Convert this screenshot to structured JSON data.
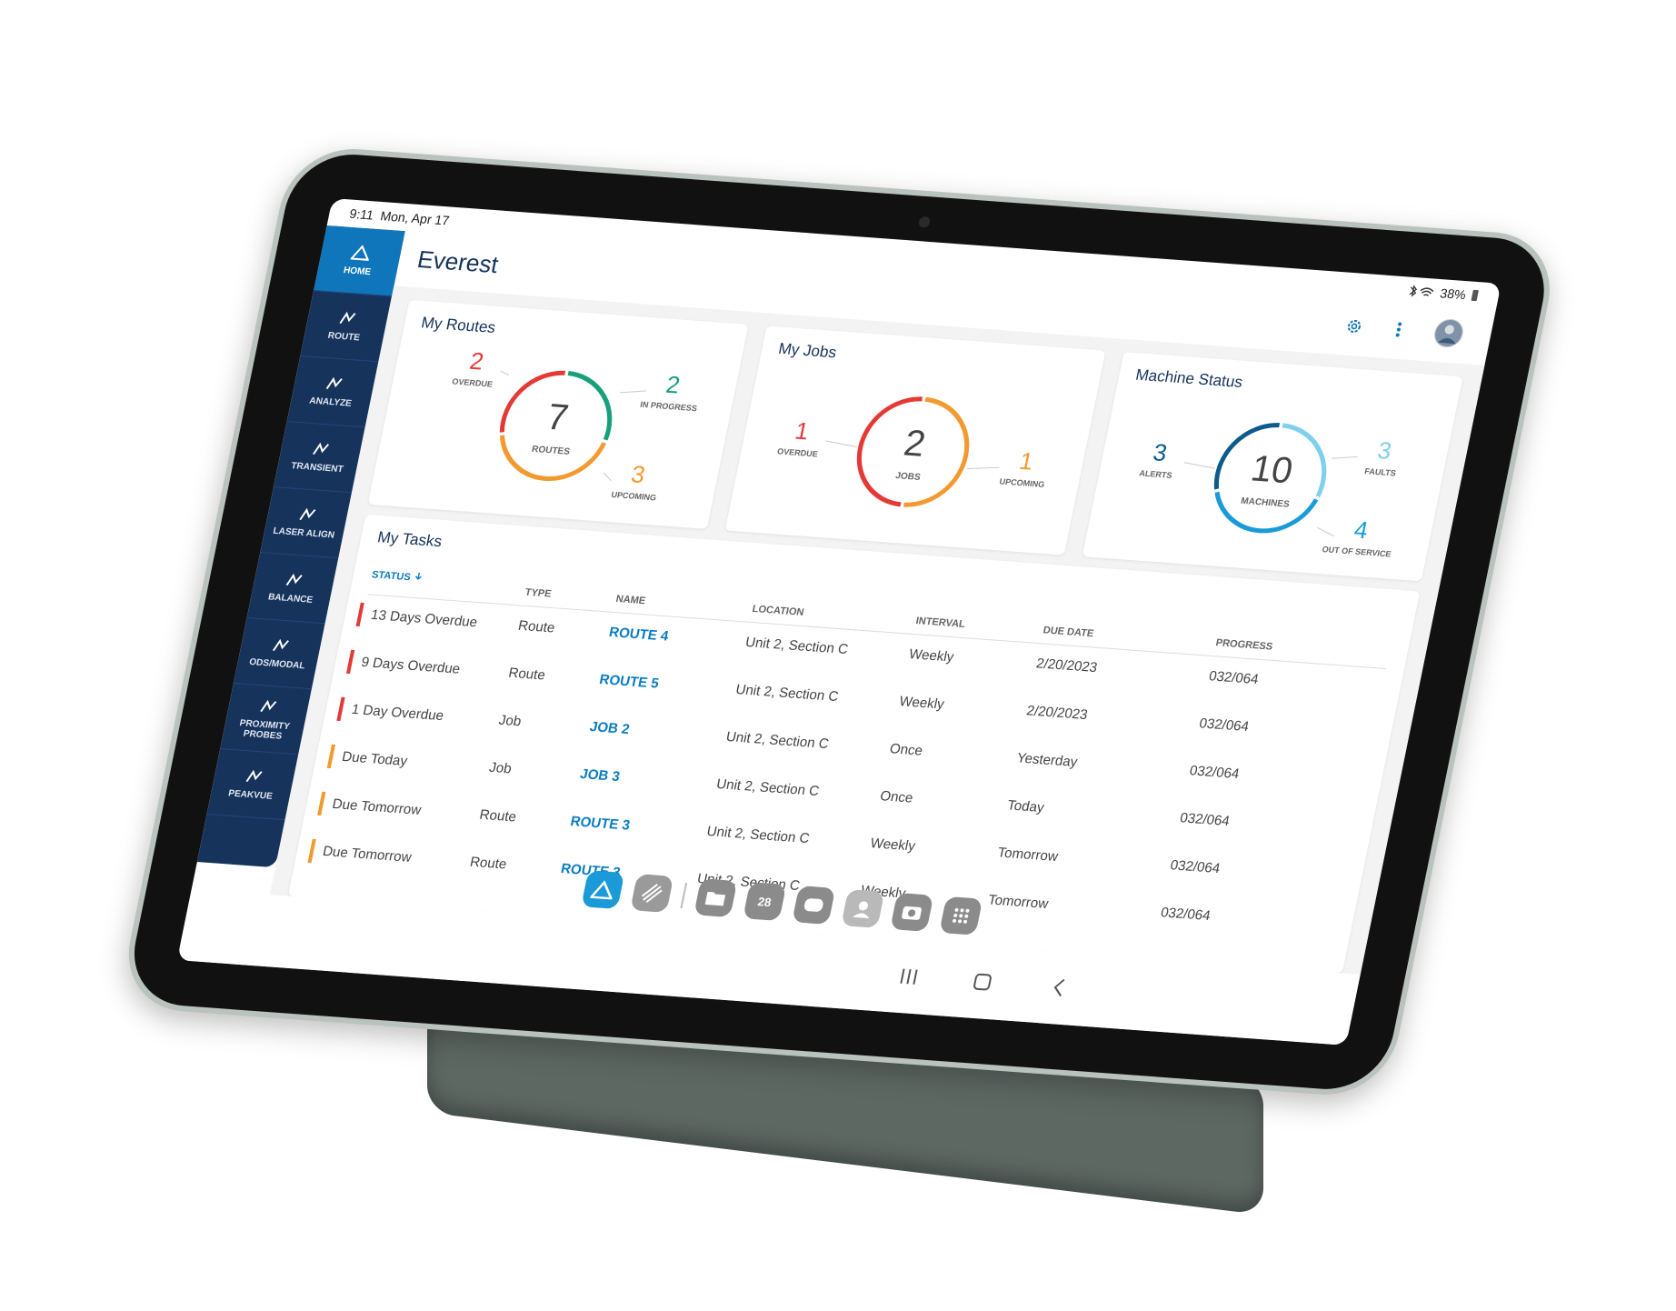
{
  "status_bar": {
    "time": "9:11",
    "date": "Mon, Apr 17",
    "battery": "38%"
  },
  "app": {
    "title": "Everest"
  },
  "nav": [
    {
      "label": "HOME"
    },
    {
      "label": "ROUTE"
    },
    {
      "label": "ANALYZE"
    },
    {
      "label": "TRANSIENT"
    },
    {
      "label": "LASER ALIGN"
    },
    {
      "label": "BALANCE"
    },
    {
      "label": "ODS/MODAL"
    },
    {
      "label": "PROXIMITY PROBES"
    },
    {
      "label": "PEAKVUE"
    }
  ],
  "summary_cards": [
    {
      "title": "My Routes",
      "total": 7,
      "total_label": "ROUTES",
      "segments": [
        {
          "label": "OVERDUE",
          "value": 2,
          "color": "#e53935"
        },
        {
          "label": "IN PROGRESS",
          "value": 2,
          "color": "#17a07a"
        },
        {
          "label": "UPCOMING",
          "value": 3,
          "color": "#f29a30"
        }
      ]
    },
    {
      "title": "My Jobs",
      "total": 2,
      "total_label": "JOBS",
      "segments": [
        {
          "label": "OVERDUE",
          "value": 1,
          "color": "#e53935"
        },
        {
          "label": "UPCOMING",
          "value": 1,
          "color": "#f29a30"
        }
      ]
    },
    {
      "title": "Machine Status",
      "total": 10,
      "total_label": "MACHINES",
      "segments": [
        {
          "label": "ALERTS",
          "value": 3,
          "color": "#0d5a8c"
        },
        {
          "label": "FAULTS",
          "value": 3,
          "color": "#7fd0ee"
        },
        {
          "label": "OUT OF SERVICE",
          "value": 4,
          "color": "#1a9bd7"
        }
      ]
    }
  ],
  "tasks": {
    "title": "My Tasks",
    "columns": [
      "STATUS",
      "TYPE",
      "NAME",
      "LOCATION",
      "INTERVAL",
      "DUE DATE",
      "PROGRESS"
    ],
    "rows": [
      {
        "status": "13 Days Overdue",
        "type": "Route",
        "name": "ROUTE 4",
        "location": "Unit 2, Section C",
        "interval": "Weekly",
        "due_date": "2/20/2023",
        "progress": "032/064",
        "color": "#e53935"
      },
      {
        "status": "9 Days Overdue",
        "type": "Route",
        "name": "ROUTE 5",
        "location": "Unit 2, Section C",
        "interval": "Weekly",
        "due_date": "2/20/2023",
        "progress": "032/064",
        "color": "#e53935"
      },
      {
        "status": "1 Day Overdue",
        "type": "Job",
        "name": "JOB 2",
        "location": "Unit 2, Section C",
        "interval": "Once",
        "due_date": "Yesterday",
        "progress": "032/064",
        "color": "#e53935"
      },
      {
        "status": "Due Today",
        "type": "Job",
        "name": "JOB 3",
        "location": "Unit 2, Section C",
        "interval": "Once",
        "due_date": "Today",
        "progress": "032/064",
        "color": "#f29a30"
      },
      {
        "status": "Due Tomorrow",
        "type": "Route",
        "name": "ROUTE 3",
        "location": "Unit 2, Section C",
        "interval": "Weekly",
        "due_date": "Tomorrow",
        "progress": "032/064",
        "color": "#f29a30"
      },
      {
        "status": "Due Tomorrow",
        "type": "Route",
        "name": "ROUTE 3",
        "location": "Unit 2, Section C",
        "interval": "Weekly",
        "due_date": "Tomorrow",
        "progress": "032/064",
        "color": "#f29a30"
      }
    ]
  },
  "dock": {
    "calendar_day": "28"
  }
}
